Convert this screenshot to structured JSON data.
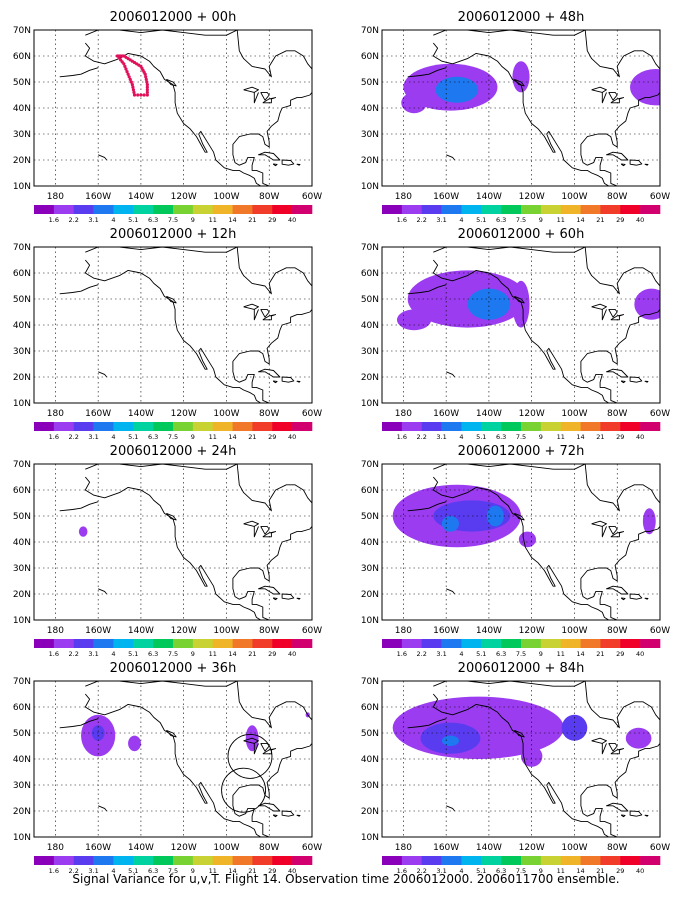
{
  "caption": "Signal Variance for u,v,T. Flight 14. Observation time 2006012000. 2006011700 ensemble.",
  "lat_labels": [
    "70N",
    "60N",
    "50N",
    "40N",
    "30N",
    "20N",
    "10N"
  ],
  "lon_labels": [
    "180",
    "160W",
    "140W",
    "120W",
    "100W",
    "80W",
    "60W"
  ],
  "colorbar": {
    "labels": [
      "1.6",
      "2.2",
      "3.1",
      "4",
      "5.1",
      "6.3",
      "7.5",
      "9",
      "11",
      "14",
      "21",
      "29",
      "40"
    ],
    "colors": [
      "#8a00ba",
      "#9b3cf0",
      "#5a3cf0",
      "#1e78f0",
      "#00b4f0",
      "#00d2a0",
      "#00c85a",
      "#78d232",
      "#c8d232",
      "#f0b428",
      "#f07828",
      "#f03c28",
      "#f00028",
      "#d2006e"
    ]
  },
  "panels": [
    {
      "title": "2006012000 + 00h",
      "flight_track": true,
      "blobs": []
    },
    {
      "title": "2006012000 + 48h",
      "blobs": [
        {
          "lon": -158,
          "lat": 48,
          "rx": 22,
          "ry": 9,
          "level": 1
        },
        {
          "lon": -155,
          "lat": 47,
          "rx": 10,
          "ry": 5,
          "level": 3
        },
        {
          "lon": -125,
          "lat": 52,
          "rx": 4,
          "ry": 6,
          "level": 1
        },
        {
          "lon": -62,
          "lat": 48,
          "rx": 12,
          "ry": 7,
          "level": 1
        },
        {
          "lon": -175,
          "lat": 42,
          "rx": 6,
          "ry": 4,
          "level": 1
        }
      ]
    },
    {
      "title": "2006012000 + 12h",
      "blobs": []
    },
    {
      "title": "2006012000 + 60h",
      "blobs": [
        {
          "lon": -150,
          "lat": 50,
          "rx": 28,
          "ry": 11,
          "level": 1
        },
        {
          "lon": -140,
          "lat": 48,
          "rx": 10,
          "ry": 6,
          "level": 3
        },
        {
          "lon": -175,
          "lat": 42,
          "rx": 8,
          "ry": 4,
          "level": 1
        },
        {
          "lon": -125,
          "lat": 48,
          "rx": 4,
          "ry": 9,
          "level": 1
        },
        {
          "lon": -64,
          "lat": 48,
          "rx": 8,
          "ry": 6,
          "level": 1
        }
      ]
    },
    {
      "title": "2006012000 + 24h",
      "blobs": [
        {
          "lon": -167,
          "lat": 44,
          "rx": 2,
          "ry": 2,
          "level": 1
        }
      ]
    },
    {
      "title": "2006012000 + 72h",
      "blobs": [
        {
          "lon": -155,
          "lat": 50,
          "rx": 30,
          "ry": 12,
          "level": 1
        },
        {
          "lon": -148,
          "lat": 50,
          "rx": 18,
          "ry": 6,
          "level": 2
        },
        {
          "lon": -158,
          "lat": 47,
          "rx": 4,
          "ry": 3,
          "level": 3
        },
        {
          "lon": -137,
          "lat": 50,
          "rx": 4,
          "ry": 4,
          "level": 3
        },
        {
          "lon": -122,
          "lat": 41,
          "rx": 4,
          "ry": 3,
          "level": 1
        },
        {
          "lon": -65,
          "lat": 48,
          "rx": 3,
          "ry": 5,
          "level": 1
        }
      ]
    },
    {
      "title": "2006012000 + 36h",
      "rings": true,
      "blobs": [
        {
          "lon": -160,
          "lat": 49,
          "rx": 8,
          "ry": 8,
          "level": 1
        },
        {
          "lon": -160,
          "lat": 50,
          "rx": 3,
          "ry": 3,
          "level": 2
        },
        {
          "lon": -143,
          "lat": 46,
          "rx": 3,
          "ry": 3,
          "level": 1
        },
        {
          "lon": -88,
          "lat": 48,
          "rx": 3,
          "ry": 5,
          "level": 1
        },
        {
          "lon": -62,
          "lat": 57,
          "rx": 1,
          "ry": 1,
          "level": 1
        }
      ]
    },
    {
      "title": "2006012000 + 84h",
      "blobs": [
        {
          "lon": -145,
          "lat": 52,
          "rx": 40,
          "ry": 12,
          "level": 1
        },
        {
          "lon": -158,
          "lat": 48,
          "rx": 14,
          "ry": 6,
          "level": 2
        },
        {
          "lon": -158,
          "lat": 47,
          "rx": 4,
          "ry": 2,
          "level": 3
        },
        {
          "lon": -100,
          "lat": 52,
          "rx": 6,
          "ry": 5,
          "level": 2
        },
        {
          "lon": -120,
          "lat": 41,
          "rx": 5,
          "ry": 4,
          "level": 1
        },
        {
          "lon": -70,
          "lat": 48,
          "rx": 6,
          "ry": 4,
          "level": 1
        }
      ]
    }
  ]
}
